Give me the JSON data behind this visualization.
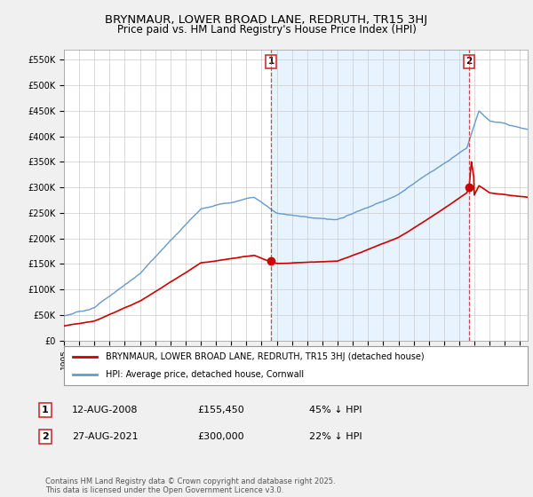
{
  "title": "BRYNMAUR, LOWER BROAD LANE, REDRUTH, TR15 3HJ",
  "subtitle": "Price paid vs. HM Land Registry's House Price Index (HPI)",
  "ylim": [
    0,
    570000
  ],
  "yticks": [
    0,
    50000,
    100000,
    150000,
    200000,
    250000,
    300000,
    350000,
    400000,
    450000,
    500000,
    550000
  ],
  "ytick_labels": [
    "£0",
    "£50K",
    "£100K",
    "£150K",
    "£200K",
    "£250K",
    "£300K",
    "£350K",
    "£400K",
    "£450K",
    "£500K",
    "£550K"
  ],
  "sale1_date": 2008.62,
  "sale1_price": 155450,
  "sale1_label": "1",
  "sale2_date": 2021.65,
  "sale2_price": 300000,
  "sale2_label": "2",
  "property_color": "#cc0000",
  "hpi_color": "#6699cc",
  "shade_color": "#ddeeff",
  "background_color": "#f0f0f0",
  "plot_bg_color": "#ffffff",
  "legend_entry1": "BRYNMAUR, LOWER BROAD LANE, REDRUTH, TR15 3HJ (detached house)",
  "legend_entry2": "HPI: Average price, detached house, Cornwall",
  "table_row1": [
    "1",
    "12-AUG-2008",
    "£155,450",
    "45% ↓ HPI"
  ],
  "table_row2": [
    "2",
    "27-AUG-2021",
    "£300,000",
    "22% ↓ HPI"
  ],
  "footer": "Contains HM Land Registry data © Crown copyright and database right 2025.\nThis data is licensed under the Open Government Licence v3.0.",
  "title_fontsize": 9.5,
  "subtitle_fontsize": 8.5,
  "xmin": 1995,
  "xmax": 2025.5
}
